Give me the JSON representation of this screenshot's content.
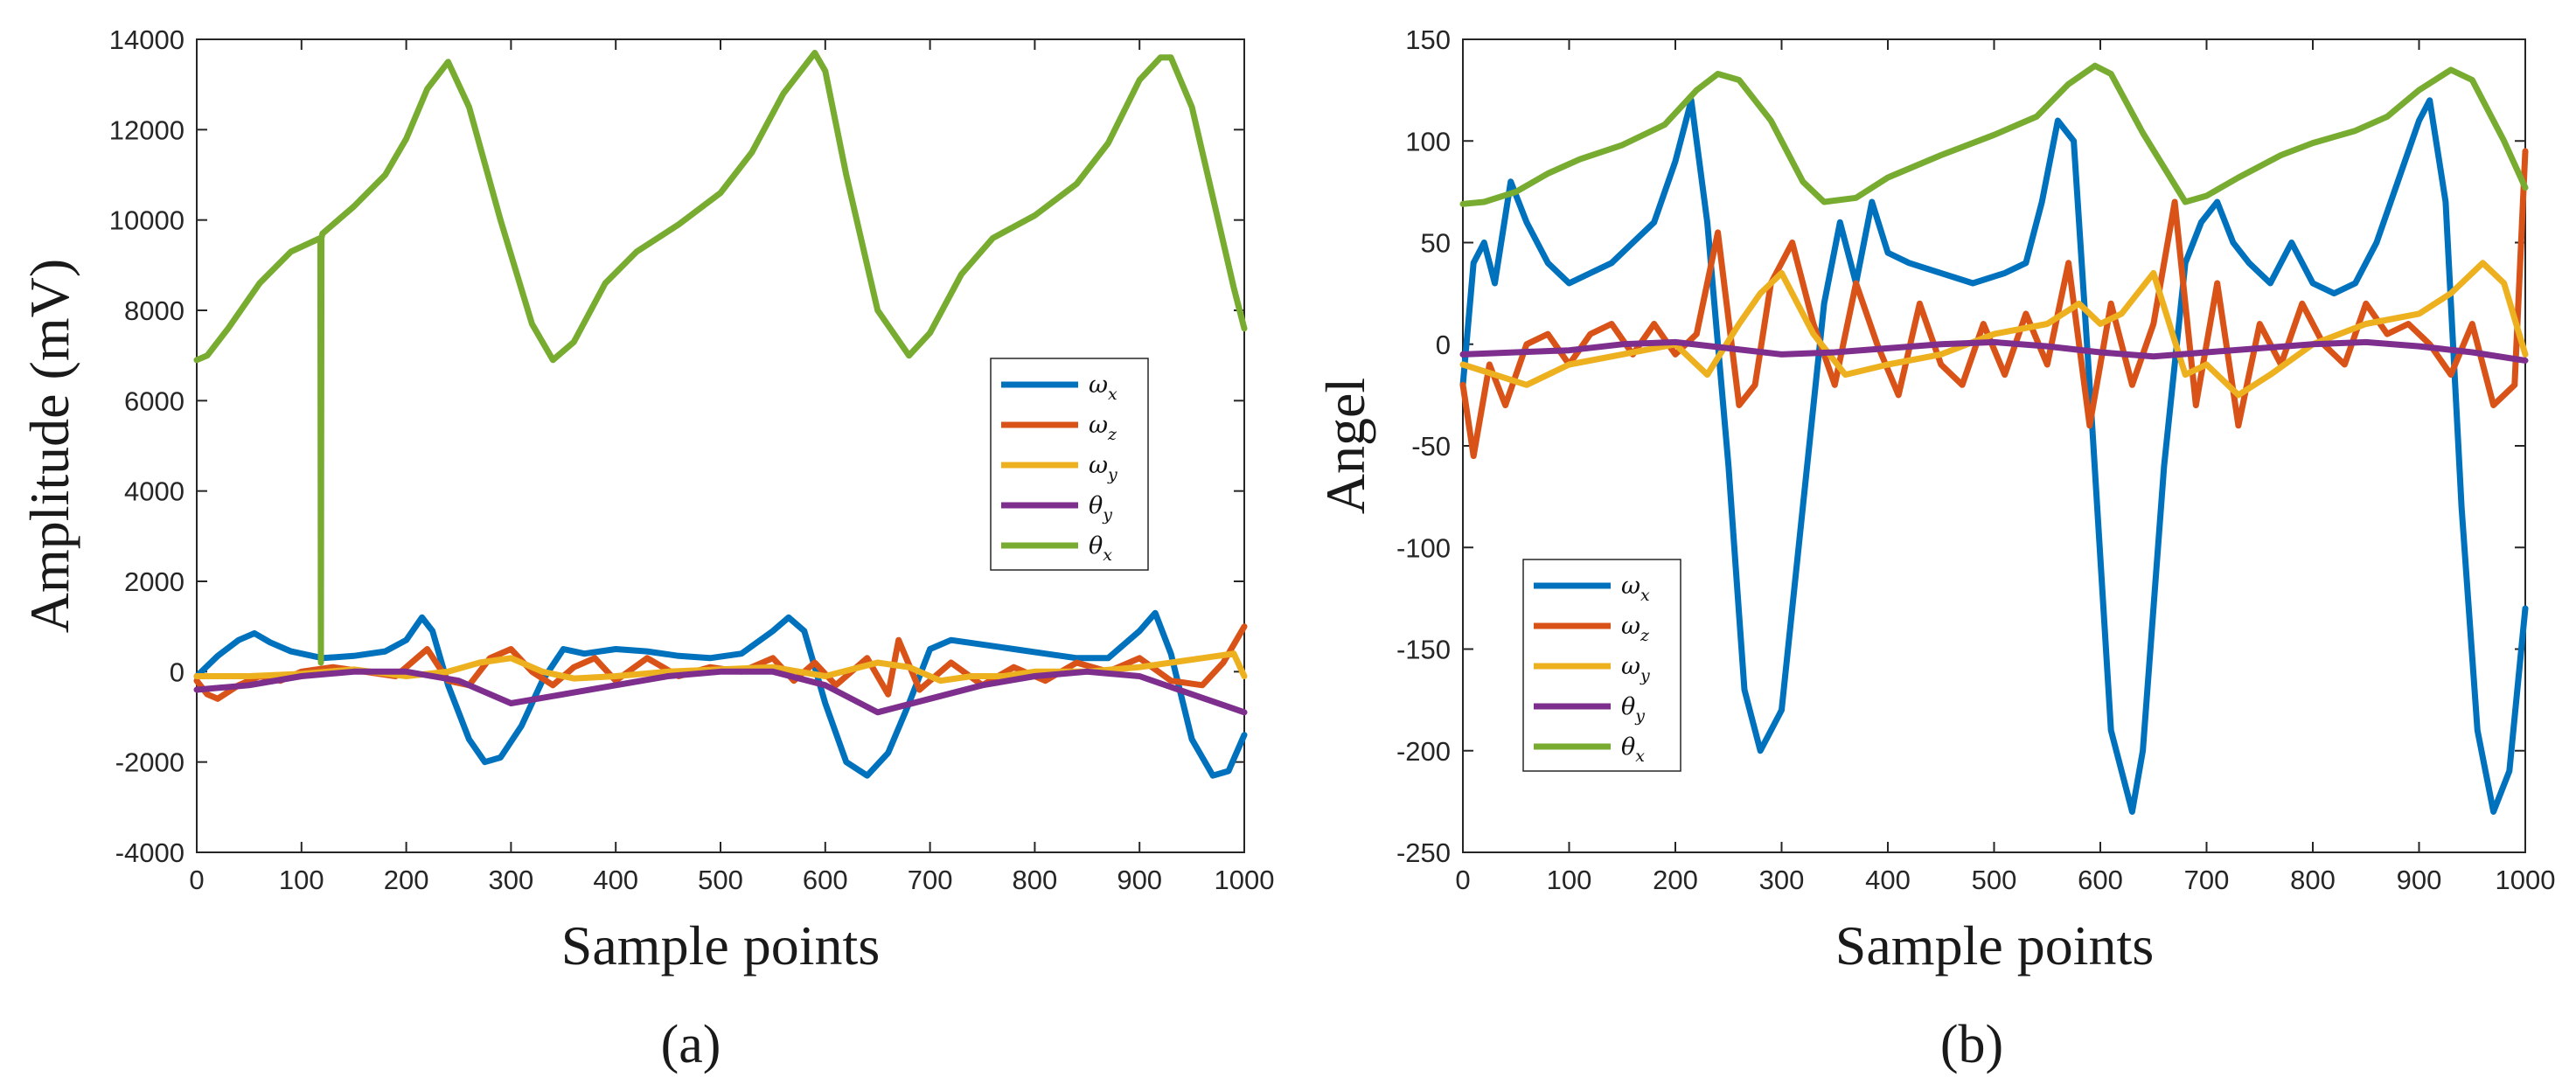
{
  "charts": [
    {
      "id": "a",
      "type": "line",
      "caption": "(a)",
      "xlabel": "Sample points",
      "ylabel": "Amplitude (mV)",
      "xlim": [
        0,
        1000
      ],
      "ylim": [
        -4000,
        14000
      ],
      "xticks": [
        "0",
        "100",
        "200",
        "300",
        "400",
        "500",
        "600",
        "700",
        "800",
        "900",
        "1000"
      ],
      "yticks": [
        "-4000",
        "-2000",
        "0",
        "2000",
        "4000",
        "6000",
        "8000",
        "10000",
        "12000",
        "14000"
      ],
      "legend_position": "right-middle",
      "series": [
        {
          "name": "ω_x",
          "base": "ω",
          "sub": "x",
          "color": "#0072BD",
          "x": [
            0,
            20,
            40,
            55,
            70,
            90,
            120,
            150,
            180,
            200,
            215,
            225,
            240,
            260,
            275,
            290,
            310,
            330,
            350,
            370,
            400,
            430,
            460,
            490,
            520,
            550,
            565,
            580,
            600,
            620,
            640,
            660,
            680,
            700,
            720,
            750,
            780,
            810,
            840,
            870,
            900,
            915,
            930,
            950,
            970,
            985,
            1000
          ],
          "y": [
            -100,
            350,
            700,
            850,
            650,
            450,
            300,
            350,
            450,
            700,
            1200,
            900,
            -300,
            -1500,
            -2000,
            -1900,
            -1200,
            -200,
            500,
            400,
            500,
            450,
            350,
            300,
            400,
            900,
            1200,
            900,
            -700,
            -2000,
            -2300,
            -1800,
            -700,
            500,
            700,
            600,
            500,
            400,
            300,
            300,
            900,
            1300,
            400,
            -1500,
            -2300,
            -2200,
            -1400
          ]
        },
        {
          "name": "ω_z",
          "base": "ω",
          "sub": "z",
          "color": "#D95319",
          "x": [
            0,
            10,
            20,
            40,
            60,
            80,
            100,
            130,
            160,
            190,
            210,
            220,
            240,
            260,
            280,
            300,
            320,
            340,
            360,
            380,
            400,
            430,
            460,
            490,
            520,
            550,
            570,
            590,
            610,
            640,
            660,
            670,
            690,
            720,
            750,
            780,
            810,
            840,
            870,
            900,
            930,
            960,
            980,
            1000
          ],
          "y": [
            -200,
            -500,
            -600,
            -300,
            -100,
            -200,
            0,
            100,
            0,
            -100,
            300,
            500,
            -200,
            -300,
            300,
            500,
            0,
            -300,
            100,
            300,
            -200,
            300,
            -100,
            100,
            0,
            300,
            -200,
            200,
            -300,
            300,
            -500,
            700,
            -400,
            200,
            -300,
            100,
            -200,
            200,
            0,
            300,
            -200,
            -300,
            200,
            1000
          ]
        },
        {
          "name": "ω_y",
          "base": "ω",
          "sub": "y",
          "color": "#EDB120",
          "x": [
            0,
            50,
            100,
            150,
            200,
            240,
            270,
            300,
            330,
            360,
            400,
            450,
            500,
            550,
            600,
            650,
            680,
            710,
            740,
            770,
            800,
            850,
            900,
            930,
            960,
            990,
            1000
          ],
          "y": [
            -100,
            -100,
            -50,
            50,
            -100,
            0,
            200,
            300,
            0,
            -150,
            -100,
            0,
            50,
            100,
            -100,
            200,
            100,
            -200,
            -100,
            -100,
            0,
            0,
            100,
            200,
            300,
            400,
            -100
          ]
        },
        {
          "name": "θ_y",
          "base": "θ",
          "sub": "y",
          "color": "#7E2F8E",
          "x": [
            0,
            50,
            100,
            150,
            200,
            250,
            300,
            350,
            400,
            450,
            500,
            550,
            600,
            650,
            700,
            750,
            800,
            850,
            900,
            950,
            1000
          ],
          "y": [
            -400,
            -300,
            -100,
            0,
            0,
            -200,
            -700,
            -500,
            -300,
            -100,
            0,
            0,
            -300,
            -900,
            -600,
            -300,
            -100,
            0,
            -100,
            -500,
            -900
          ]
        },
        {
          "name": "θ_x",
          "base": "θ",
          "sub": "x",
          "color": "#77AC30",
          "x": [
            0,
            10,
            30,
            60,
            90,
            118,
            118.5,
            119,
            120,
            150,
            180,
            200,
            220,
            240,
            260,
            290,
            320,
            340,
            360,
            390,
            420,
            460,
            500,
            530,
            560,
            590,
            600,
            620,
            650,
            680,
            700,
            730,
            760,
            800,
            840,
            870,
            900,
            920,
            930,
            950,
            970,
            990,
            1000
          ],
          "y": [
            6900,
            7000,
            7600,
            8600,
            9300,
            9600,
            200,
            9600,
            9700,
            10300,
            11000,
            11800,
            12900,
            13500,
            12500,
            10000,
            7700,
            6900,
            7300,
            8600,
            9300,
            9900,
            10600,
            11500,
            12800,
            13700,
            13300,
            11000,
            8000,
            7000,
            7500,
            8800,
            9600,
            10100,
            10800,
            11700,
            13100,
            13600,
            13600,
            12500,
            10500,
            8500,
            7600
          ]
        }
      ]
    },
    {
      "id": "b",
      "type": "line",
      "caption": "(b)",
      "xlabel": "Sample points",
      "ylabel": "Angel",
      "xlim": [
        0,
        1000
      ],
      "ylim": [
        -250,
        150
      ],
      "xticks": [
        "0",
        "100",
        "200",
        "300",
        "400",
        "500",
        "600",
        "700",
        "800",
        "900",
        "1000"
      ],
      "yticks": [
        "-250",
        "-200",
        "-150",
        "-100",
        "-50",
        "0",
        "50",
        "100",
        "150"
      ],
      "legend_position": "left-bottom",
      "series": [
        {
          "name": "ω_x",
          "base": "ω",
          "sub": "x",
          "color": "#0072BD",
          "x": [
            0,
            10,
            20,
            30,
            45,
            60,
            80,
            100,
            120,
            140,
            160,
            180,
            200,
            215,
            230,
            250,
            265,
            280,
            300,
            320,
            340,
            355,
            370,
            385,
            400,
            420,
            450,
            480,
            510,
            530,
            545,
            560,
            575,
            590,
            610,
            630,
            640,
            660,
            680,
            695,
            710,
            725,
            740,
            760,
            780,
            800,
            820,
            840,
            860,
            880,
            900,
            910,
            925,
            940,
            955,
            970,
            985,
            1000
          ],
          "y": [
            -20,
            40,
            50,
            30,
            80,
            60,
            40,
            30,
            35,
            40,
            50,
            60,
            90,
            120,
            60,
            -60,
            -170,
            -200,
            -180,
            -80,
            20,
            60,
            30,
            70,
            45,
            40,
            35,
            30,
            35,
            40,
            70,
            110,
            100,
            -20,
            -190,
            -230,
            -200,
            -60,
            40,
            60,
            70,
            50,
            40,
            30,
            50,
            30,
            25,
            30,
            50,
            80,
            110,
            120,
            70,
            -80,
            -190,
            -230,
            -210,
            -130
          ]
        },
        {
          "name": "ω_z",
          "base": "ω",
          "sub": "z",
          "color": "#D95319",
          "x": [
            0,
            10,
            25,
            40,
            60,
            80,
            100,
            120,
            140,
            160,
            180,
            200,
            220,
            240,
            260,
            275,
            290,
            310,
            330,
            350,
            370,
            390,
            410,
            430,
            450,
            470,
            490,
            510,
            530,
            550,
            570,
            590,
            610,
            630,
            650,
            670,
            690,
            710,
            730,
            750,
            770,
            790,
            810,
            830,
            850,
            870,
            890,
            910,
            930,
            950,
            970,
            990,
            1000
          ],
          "y": [
            -20,
            -55,
            -10,
            -30,
            0,
            5,
            -10,
            5,
            10,
            -5,
            10,
            -5,
            5,
            55,
            -30,
            -20,
            30,
            50,
            10,
            -20,
            30,
            0,
            -25,
            20,
            -10,
            -20,
            10,
            -15,
            15,
            -10,
            40,
            -40,
            20,
            -20,
            10,
            70,
            -30,
            30,
            -40,
            10,
            -10,
            20,
            0,
            -10,
            20,
            5,
            10,
            0,
            -15,
            10,
            -30,
            -20,
            95
          ]
        },
        {
          "name": "ω_y",
          "base": "ω",
          "sub": "y",
          "color": "#EDB120",
          "x": [
            0,
            30,
            60,
            100,
            150,
            200,
            230,
            260,
            280,
            300,
            330,
            360,
            400,
            450,
            500,
            550,
            580,
            600,
            620,
            650,
            680,
            700,
            730,
            760,
            800,
            850,
            900,
            930,
            960,
            980,
            1000
          ],
          "y": [
            -10,
            -15,
            -20,
            -10,
            -5,
            0,
            -15,
            10,
            25,
            35,
            5,
            -15,
            -10,
            -5,
            5,
            10,
            20,
            10,
            15,
            35,
            -15,
            -10,
            -25,
            -15,
            0,
            10,
            15,
            25,
            40,
            30,
            -5
          ]
        },
        {
          "name": "θ_y",
          "base": "θ",
          "sub": "y",
          "color": "#7E2F8E",
          "x": [
            0,
            50,
            100,
            150,
            200,
            250,
            300,
            350,
            400,
            450,
            500,
            550,
            600,
            650,
            700,
            750,
            800,
            850,
            900,
            950,
            1000
          ],
          "y": [
            -5,
            -4,
            -3,
            0,
            1,
            -2,
            -5,
            -4,
            -2,
            0,
            1,
            -1,
            -4,
            -6,
            -4,
            -2,
            0,
            1,
            -1,
            -4,
            -8
          ]
        },
        {
          "name": "θ_x",
          "base": "θ",
          "sub": "x",
          "color": "#77AC30",
          "x": [
            0,
            20,
            50,
            80,
            110,
            150,
            190,
            220,
            240,
            260,
            290,
            320,
            340,
            370,
            400,
            450,
            500,
            540,
            570,
            595,
            610,
            640,
            680,
            700,
            730,
            770,
            800,
            840,
            870,
            900,
            930,
            950,
            980,
            1000
          ],
          "y": [
            69,
            70,
            75,
            84,
            91,
            98,
            108,
            125,
            133,
            130,
            110,
            80,
            70,
            72,
            82,
            93,
            103,
            112,
            128,
            137,
            133,
            104,
            70,
            73,
            82,
            93,
            99,
            105,
            112,
            125,
            135,
            130,
            100,
            77
          ]
        }
      ]
    }
  ]
}
